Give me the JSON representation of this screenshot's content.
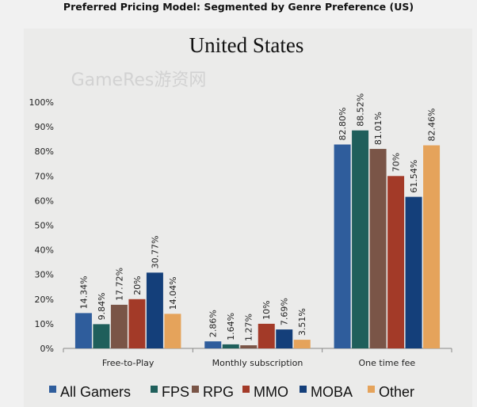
{
  "header": {
    "title": "Preferred Pricing Model: Segmented by Genre Preference (US)"
  },
  "watermark": "GameRes游资网",
  "chart_data": {
    "type": "bar",
    "title": "United States",
    "categories": [
      "Free-to-Play",
      "Monthly subscription",
      "One time fee"
    ],
    "ylim": [
      0,
      100
    ],
    "yticks": [
      "0%",
      "10%",
      "20%",
      "30%",
      "40%",
      "50%",
      "60%",
      "70%",
      "80%",
      "90%",
      "100%"
    ],
    "grid": false,
    "legend": "bottom",
    "series": [
      {
        "name": "All Gamers",
        "color": "#2f5d9c",
        "values": [
          14.34,
          2.86,
          82.8
        ],
        "labels": [
          "14.34%",
          "2.86%",
          "82.80%"
        ]
      },
      {
        "name": "FPS",
        "color": "#1f5f5b",
        "values": [
          9.84,
          1.64,
          88.52
        ],
        "labels": [
          "9.84%",
          "1.64%",
          "88.52%"
        ]
      },
      {
        "name": "RPG",
        "color": "#7a5547",
        "values": [
          17.72,
          1.27,
          81.01
        ],
        "labels": [
          "17.72%",
          "1.27%",
          "81.01%"
        ]
      },
      {
        "name": "MMO",
        "color": "#a33a28",
        "values": [
          20,
          10,
          70
        ],
        "labels": [
          "20%",
          "10%",
          "70%"
        ]
      },
      {
        "name": "MOBA",
        "color": "#143f7a",
        "values": [
          30.77,
          7.69,
          61.54
        ],
        "labels": [
          "30.77%",
          "7.69%",
          "61.54%"
        ]
      },
      {
        "name": "Other",
        "color": "#e5a35b",
        "values": [
          14.04,
          3.51,
          82.46
        ],
        "labels": [
          "14.04%",
          "3.51%",
          "82.46%"
        ]
      }
    ]
  }
}
